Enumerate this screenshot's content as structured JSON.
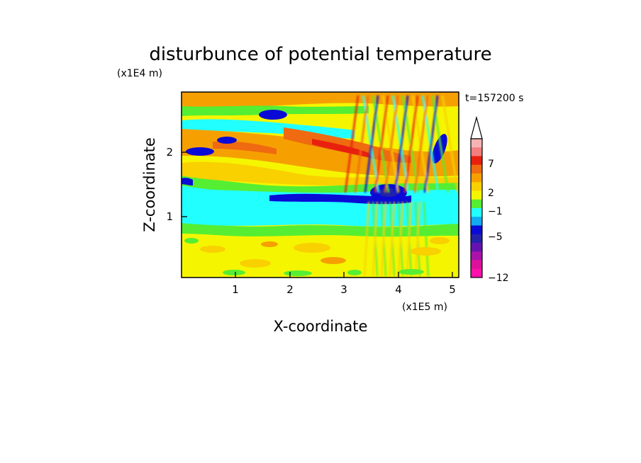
{
  "chart_data": {
    "type": "heatmap",
    "title": "disturbunce of potential temperature",
    "xlabel": "X-coordinate",
    "ylabel": "Z-coordinate",
    "x_unit": "(x1E5 m)",
    "y_unit": "(x1E4 m)",
    "time_label": "t=157200 s",
    "xlim": [
      0,
      5.12
    ],
    "ylim": [
      0,
      2.9
    ],
    "x_ticks": [
      "1",
      "2",
      "3",
      "4",
      "5"
    ],
    "y_ticks": [
      "1",
      "2"
    ],
    "colorbar": {
      "labels": [
        "7",
        "2",
        "−1",
        "−5",
        "−12"
      ],
      "colors": [
        "#f7b3b3",
        "#f47d7d",
        "#e8200e",
        "#ef6a10",
        "#f5a000",
        "#f9d000",
        "#f5f500",
        "#55ee33",
        "#22ffff",
        "#12aaf0",
        "#0a0ad6",
        "#2222aa",
        "#6612b0",
        "#aa12aa",
        "#dd1199",
        "#ff11aa"
      ],
      "extend": "max"
    },
    "grid": false
  }
}
